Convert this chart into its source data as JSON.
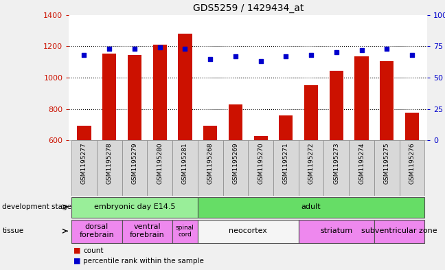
{
  "title": "GDS5259 / 1429434_at",
  "samples": [
    "GSM1195277",
    "GSM1195278",
    "GSM1195279",
    "GSM1195280",
    "GSM1195281",
    "GSM1195268",
    "GSM1195269",
    "GSM1195270",
    "GSM1195271",
    "GSM1195272",
    "GSM1195273",
    "GSM1195274",
    "GSM1195275",
    "GSM1195276"
  ],
  "counts": [
    695,
    1155,
    1145,
    1210,
    1280,
    695,
    830,
    630,
    760,
    950,
    1045,
    1135,
    1105,
    775
  ],
  "percentiles": [
    68,
    73,
    73,
    74,
    73,
    65,
    67,
    63,
    67,
    68,
    70,
    72,
    73,
    68
  ],
  "ylim_left": [
    600,
    1400
  ],
  "ylim_right": [
    0,
    100
  ],
  "yticks_left": [
    600,
    800,
    1000,
    1200,
    1400
  ],
  "yticks_right": [
    0,
    25,
    50,
    75,
    100
  ],
  "bar_color": "#cc1100",
  "dot_color": "#0000cc",
  "background_color": "#f0f0f0",
  "plot_bg": "#ffffff",
  "dev_stage_groups": [
    {
      "label": "embryonic day E14.5",
      "start": 0,
      "end": 5,
      "color": "#99ee99"
    },
    {
      "label": "adult",
      "start": 5,
      "end": 14,
      "color": "#66dd66"
    }
  ],
  "tissue_groups": [
    {
      "label": "dorsal\nforebrain",
      "start": 0,
      "end": 2,
      "color": "#ee88ee"
    },
    {
      "label": "ventral\nforebrain",
      "start": 2,
      "end": 4,
      "color": "#ee88ee"
    },
    {
      "label": "spinal\ncord",
      "start": 4,
      "end": 5,
      "color": "#ee88ee"
    },
    {
      "label": "neocortex",
      "start": 5,
      "end": 9,
      "color": "#f5f5f5"
    },
    {
      "label": "striatum",
      "start": 9,
      "end": 12,
      "color": "#ee88ee"
    },
    {
      "label": "subventricular zone",
      "start": 12,
      "end": 14,
      "color": "#ee88ee"
    }
  ]
}
